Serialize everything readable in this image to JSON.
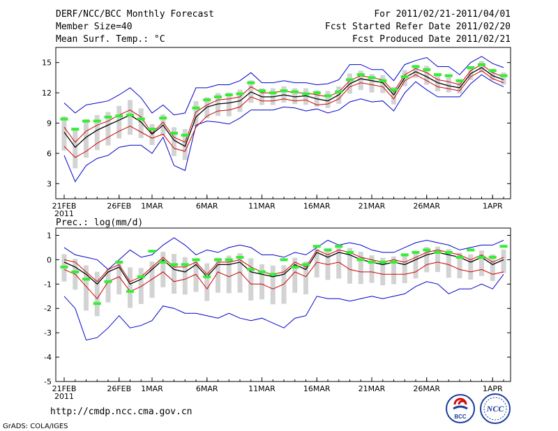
{
  "header": {
    "title": "DERF/NCC/BCC Monthly Forecast",
    "member_size": "Member Size=40",
    "variable": "Mean Surf. Temp.: °C",
    "period": "For 2011/02/21-2011/04/01",
    "started": "Fcst Started Refer Date 2011/02/20",
    "produced": "Fcst Produced Date 2011/02/21"
  },
  "footer": {
    "url": "http://cmdp.ncc.cma.gov.cn",
    "grads": "GrADS: COLA/IGES",
    "logo_bcc": "BCC",
    "logo_ncc": "NCC"
  },
  "colors": {
    "max_min": "#0000cc",
    "mean": "#000000",
    "spread": "#cc0000",
    "obs": "#33ee33",
    "box": "#d3d3d3"
  },
  "chart_data": [
    {
      "type": "line",
      "title": "Mean Surf. Temp.: °C",
      "x_labels": [
        {
          "index": 0,
          "label": "21FEB",
          "sub": "2011"
        },
        {
          "index": 5,
          "label": "26FEB",
          "sub": ""
        },
        {
          "index": 8,
          "label": "1MAR",
          "sub": ""
        },
        {
          "index": 13,
          "label": "6MAR",
          "sub": ""
        },
        {
          "index": 18,
          "label": "11MAR",
          "sub": ""
        },
        {
          "index": 23,
          "label": "16MAR",
          "sub": ""
        },
        {
          "index": 28,
          "label": "21MAR",
          "sub": ""
        },
        {
          "index": 33,
          "label": "26MAR",
          "sub": ""
        },
        {
          "index": 39,
          "label": "1APR",
          "sub": ""
        }
      ],
      "ylim": [
        1.5,
        16.5
      ],
      "yticks": [
        3,
        6,
        9,
        12,
        15
      ],
      "series": [
        {
          "name": "max",
          "values": [
            11.0,
            10.0,
            10.8,
            11.0,
            11.2,
            11.8,
            12.5,
            11.5,
            10.0,
            10.8,
            9.8,
            10.0,
            12.5,
            12.5,
            12.8,
            12.8,
            13.2,
            14.0,
            13.0,
            13.0,
            13.2,
            13.0,
            13.0,
            12.8,
            12.9,
            13.3,
            14.8,
            14.8,
            14.3,
            14.3,
            13.2,
            14.8,
            15.2,
            15.5,
            14.6,
            14.6,
            13.8,
            15.0,
            15.6,
            14.9,
            14.5
          ]
        },
        {
          "name": "mean_upper",
          "values": [
            8.6,
            7.1,
            8.2,
            8.8,
            9.2,
            9.8,
            10.3,
            9.6,
            8.0,
            9.1,
            7.6,
            7.1,
            10.1,
            10.8,
            11.3,
            11.4,
            11.6,
            12.6,
            12.0,
            12.0,
            12.2,
            12.0,
            12.0,
            11.8,
            11.6,
            12.1,
            13.2,
            13.7,
            13.5,
            13.3,
            12.1,
            13.8,
            14.4,
            14.0,
            13.3,
            13.1,
            12.8,
            14.2,
            14.8,
            14.0,
            13.6
          ]
        },
        {
          "name": "mean",
          "values": [
            8.1,
            6.6,
            7.6,
            8.3,
            8.8,
            9.3,
            9.8,
            9.1,
            7.9,
            8.8,
            7.3,
            6.7,
            9.6,
            10.6,
            10.9,
            11.0,
            11.2,
            12.1,
            11.6,
            11.6,
            11.8,
            11.6,
            11.7,
            11.4,
            11.2,
            11.8,
            12.9,
            13.4,
            13.2,
            13.0,
            11.8,
            13.5,
            14.1,
            13.6,
            13.0,
            12.7,
            12.5,
            13.9,
            14.5,
            13.7,
            13.3
          ]
        },
        {
          "name": "mean_lower",
          "values": [
            6.7,
            5.6,
            6.2,
            7.0,
            7.6,
            8.2,
            8.7,
            8.1,
            7.5,
            7.9,
            6.5,
            6.2,
            8.6,
            9.7,
            10.2,
            10.3,
            10.6,
            11.6,
            11.2,
            11.2,
            11.4,
            11.2,
            11.3,
            10.8,
            10.9,
            11.4,
            12.6,
            13.0,
            12.8,
            12.6,
            11.4,
            13.2,
            13.8,
            13.2,
            12.6,
            12.4,
            12.2,
            13.6,
            14.2,
            13.4,
            13.0
          ]
        },
        {
          "name": "min",
          "values": [
            5.8,
            3.2,
            4.8,
            5.5,
            5.8,
            6.6,
            6.8,
            6.8,
            6.0,
            7.6,
            4.8,
            4.3,
            8.8,
            9.2,
            9.1,
            8.9,
            9.5,
            10.3,
            10.3,
            10.3,
            10.6,
            10.5,
            10.2,
            10.4,
            10.0,
            10.3,
            11.1,
            11.4,
            11.1,
            11.2,
            10.2,
            12.0,
            13.1,
            12.3,
            11.6,
            11.6,
            11.6,
            12.9,
            13.8,
            13.1,
            12.6
          ]
        },
        {
          "name": "observed",
          "values": [
            9.4,
            8.4,
            9.2,
            9.2,
            9.6,
            9.7,
            9.8,
            9.4,
            8.4,
            9.5,
            8.0,
            7.8,
            10.5,
            11.3,
            11.6,
            11.8,
            11.9,
            13.0,
            12.2,
            12.0,
            12.2,
            12.1,
            11.9,
            12.0,
            11.7,
            12.1,
            13.3,
            13.8,
            13.5,
            13.2,
            12.3,
            13.6,
            14.6,
            14.3,
            13.8,
            13.7,
            13.2,
            14.5,
            14.8,
            14.2,
            13.7
          ]
        }
      ]
    },
    {
      "type": "line",
      "title": "Prec.: log(mm/d)",
      "x_labels": [
        {
          "index": 0,
          "label": "21FEB",
          "sub": "2011"
        },
        {
          "index": 5,
          "label": "26FEB",
          "sub": ""
        },
        {
          "index": 8,
          "label": "1MAR",
          "sub": ""
        },
        {
          "index": 13,
          "label": "6MAR",
          "sub": ""
        },
        {
          "index": 18,
          "label": "11MAR",
          "sub": ""
        },
        {
          "index": 23,
          "label": "16MAR",
          "sub": ""
        },
        {
          "index": 28,
          "label": "21MAR",
          "sub": ""
        },
        {
          "index": 33,
          "label": "26MAR",
          "sub": ""
        },
        {
          "index": 39,
          "label": "1APR",
          "sub": ""
        }
      ],
      "ylim": [
        -5,
        1.3
      ],
      "yticks": [
        -5,
        -4,
        -3,
        -2,
        -1,
        0,
        1
      ],
      "series": [
        {
          "name": "max",
          "values": [
            0.5,
            0.2,
            0.1,
            0.0,
            -0.4,
            0.0,
            0.4,
            0.1,
            0.2,
            0.6,
            0.9,
            0.6,
            0.2,
            0.4,
            0.3,
            0.5,
            0.6,
            0.5,
            0.2,
            0.2,
            0.1,
            0.3,
            0.2,
            0.5,
            0.8,
            0.6,
            0.7,
            0.6,
            0.4,
            0.3,
            0.3,
            0.5,
            0.7,
            0.8,
            0.7,
            0.6,
            0.4,
            0.5,
            0.6,
            0.6,
            0.8
          ]
        },
        {
          "name": "mean_upper",
          "values": [
            0.0,
            -0.1,
            -0.5,
            -0.9,
            -0.4,
            -0.2,
            -0.9,
            -0.7,
            -0.3,
            0.1,
            -0.3,
            -0.3,
            -0.1,
            -0.6,
            -0.1,
            -0.1,
            0.0,
            -0.3,
            -0.5,
            -0.6,
            -0.5,
            -0.1,
            -0.3,
            0.4,
            0.2,
            0.4,
            0.3,
            0.1,
            0.0,
            -0.1,
            0.0,
            -0.1,
            0.1,
            0.3,
            0.4,
            0.3,
            0.2,
            0.0,
            0.2,
            -0.1,
            0.1
          ]
        },
        {
          "name": "mean",
          "values": [
            -0.1,
            -0.3,
            -0.6,
            -1.0,
            -0.5,
            -0.3,
            -1.0,
            -0.8,
            -0.4,
            0.0,
            -0.4,
            -0.5,
            -0.2,
            -0.7,
            -0.2,
            -0.2,
            -0.1,
            -0.5,
            -0.6,
            -0.7,
            -0.6,
            -0.2,
            -0.4,
            0.3,
            0.1,
            0.3,
            0.2,
            0.0,
            -0.1,
            -0.2,
            -0.1,
            -0.2,
            0.0,
            0.2,
            0.3,
            0.2,
            0.1,
            -0.1,
            0.1,
            -0.2,
            0.0
          ]
        },
        {
          "name": "mean_lower",
          "values": [
            -0.4,
            -0.6,
            -1.1,
            -1.6,
            -0.9,
            -0.7,
            -1.3,
            -1.1,
            -0.8,
            -0.5,
            -0.9,
            -0.8,
            -0.6,
            -1.2,
            -0.5,
            -0.7,
            -0.5,
            -1.0,
            -1.0,
            -1.2,
            -1.0,
            -0.5,
            -0.7,
            -0.1,
            -0.2,
            -0.1,
            -0.4,
            -0.5,
            -0.5,
            -0.6,
            -0.6,
            -0.6,
            -0.5,
            -0.2,
            -0.1,
            -0.2,
            -0.4,
            -0.5,
            -0.4,
            -0.6,
            -0.5
          ]
        },
        {
          "name": "min",
          "values": [
            -1.5,
            -2.0,
            -3.3,
            -3.2,
            -2.8,
            -2.3,
            -2.8,
            -2.7,
            -2.5,
            -1.9,
            -2.0,
            -2.2,
            -2.2,
            -2.3,
            -2.4,
            -2.2,
            -2.4,
            -2.5,
            -2.4,
            -2.6,
            -2.8,
            -2.4,
            -2.3,
            -1.5,
            -1.6,
            -1.6,
            -1.7,
            -1.6,
            -1.5,
            -1.6,
            -1.5,
            -1.4,
            -1.1,
            -0.9,
            -1.0,
            -1.4,
            -1.2,
            -1.2,
            -1.0,
            -1.2,
            -0.6
          ]
        },
        {
          "name": "observed",
          "values": [
            -0.3,
            -0.5,
            -0.8,
            -1.8,
            -0.9,
            -0.1,
            -1.3,
            -0.7,
            0.35,
            -0.1,
            -0.2,
            -0.2,
            0.0,
            -0.7,
            0.0,
            0.0,
            0.1,
            -0.4,
            -0.5,
            -0.6,
            0.0,
            -0.3,
            -0.2,
            0.55,
            0.4,
            0.55,
            0.3,
            0.0,
            -0.1,
            -0.1,
            -0.1,
            0.2,
            0.3,
            0.4,
            0.3,
            0.3,
            0.1,
            0.4,
            0.1,
            0.1,
            0.55
          ]
        }
      ]
    }
  ]
}
